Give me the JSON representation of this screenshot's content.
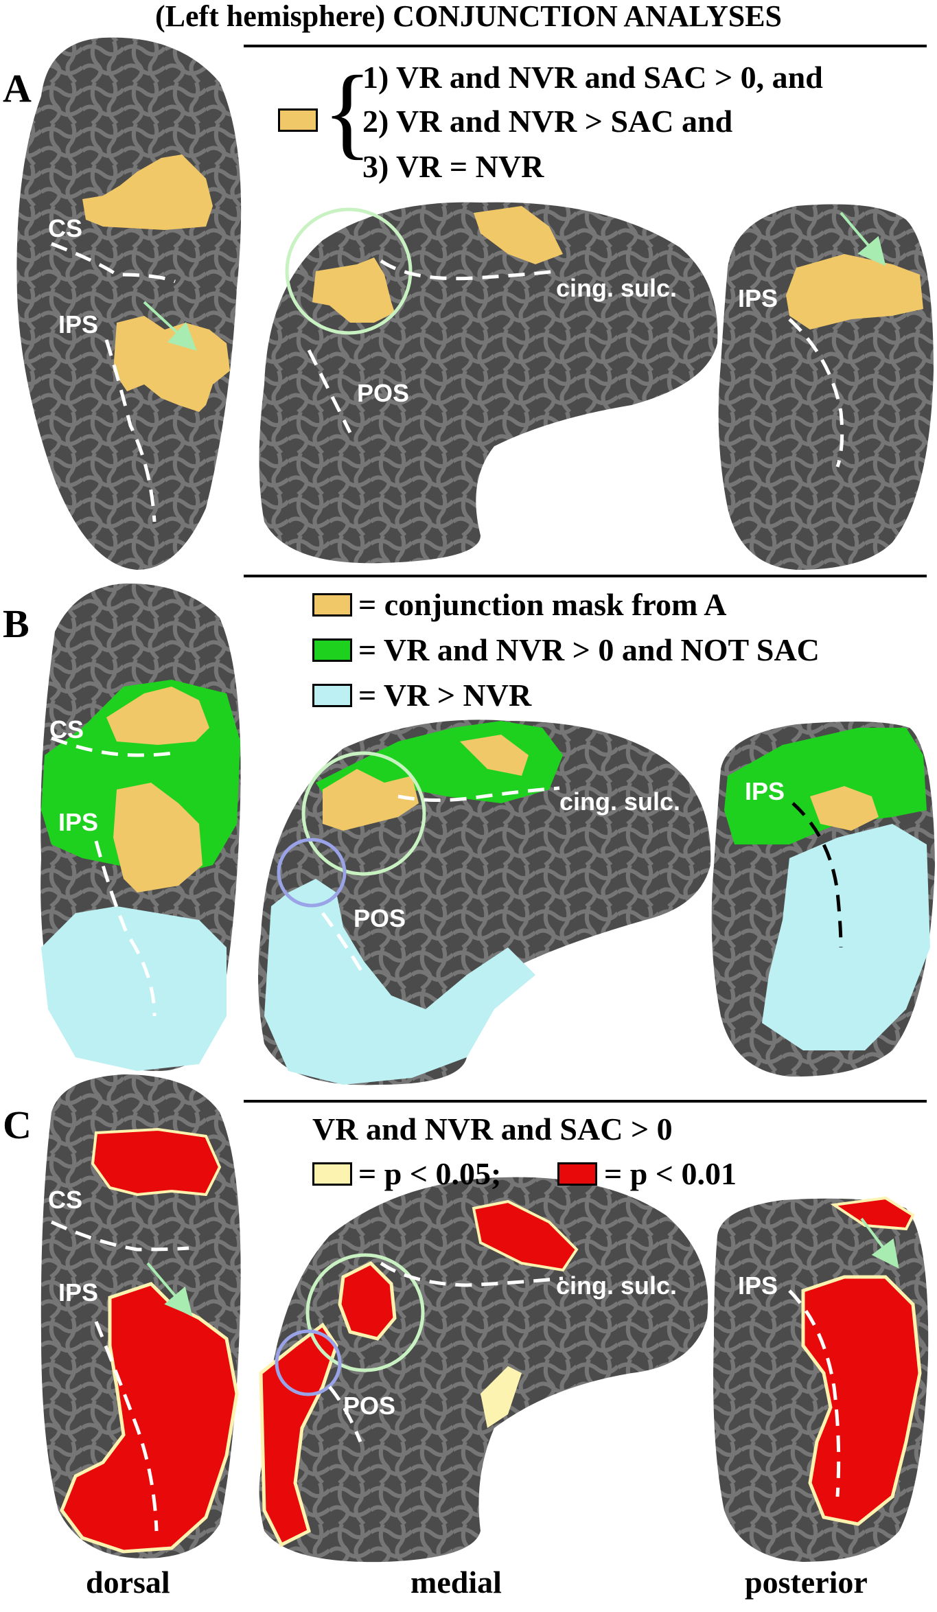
{
  "title": "(Left hemisphere) CONJUNCTION ANALYSES",
  "panels": {
    "a": {
      "letter": "A",
      "criteria": [
        "1) VR and NVR and SAC > 0, and",
        "2) VR and NVR > SAC and",
        "3) VR = NVR"
      ]
    },
    "b": {
      "letter": "B",
      "legend": [
        {
          "text": "= conjunction mask from A",
          "color": "#f0c868"
        },
        {
          "text": "= VR and NVR > 0 and NOT SAC",
          "color": "#1fd11f"
        },
        {
          "text": "= VR > NVR",
          "color": "#bdf0f2"
        }
      ]
    },
    "c": {
      "letter": "C",
      "heading": "VR and NVR and SAC > 0",
      "legend_low": "= p < 0.05;",
      "legend_high": "=  p < 0.01",
      "color_low": "#fdf3b0",
      "color_high": "#e80a0a"
    }
  },
  "sulci": {
    "cs": "CS",
    "ips": "IPS",
    "pos": "POS",
    "cing": "cing. sulc."
  },
  "views": [
    "dorsal",
    "medial",
    "posterior"
  ],
  "colors": {
    "brain_dark": "#4a4a4a",
    "brain_light": "#747474",
    "circle_green": "#c9f2c2",
    "circle_blue": "#9aa3e8",
    "arrow": "#a8ecb2"
  }
}
